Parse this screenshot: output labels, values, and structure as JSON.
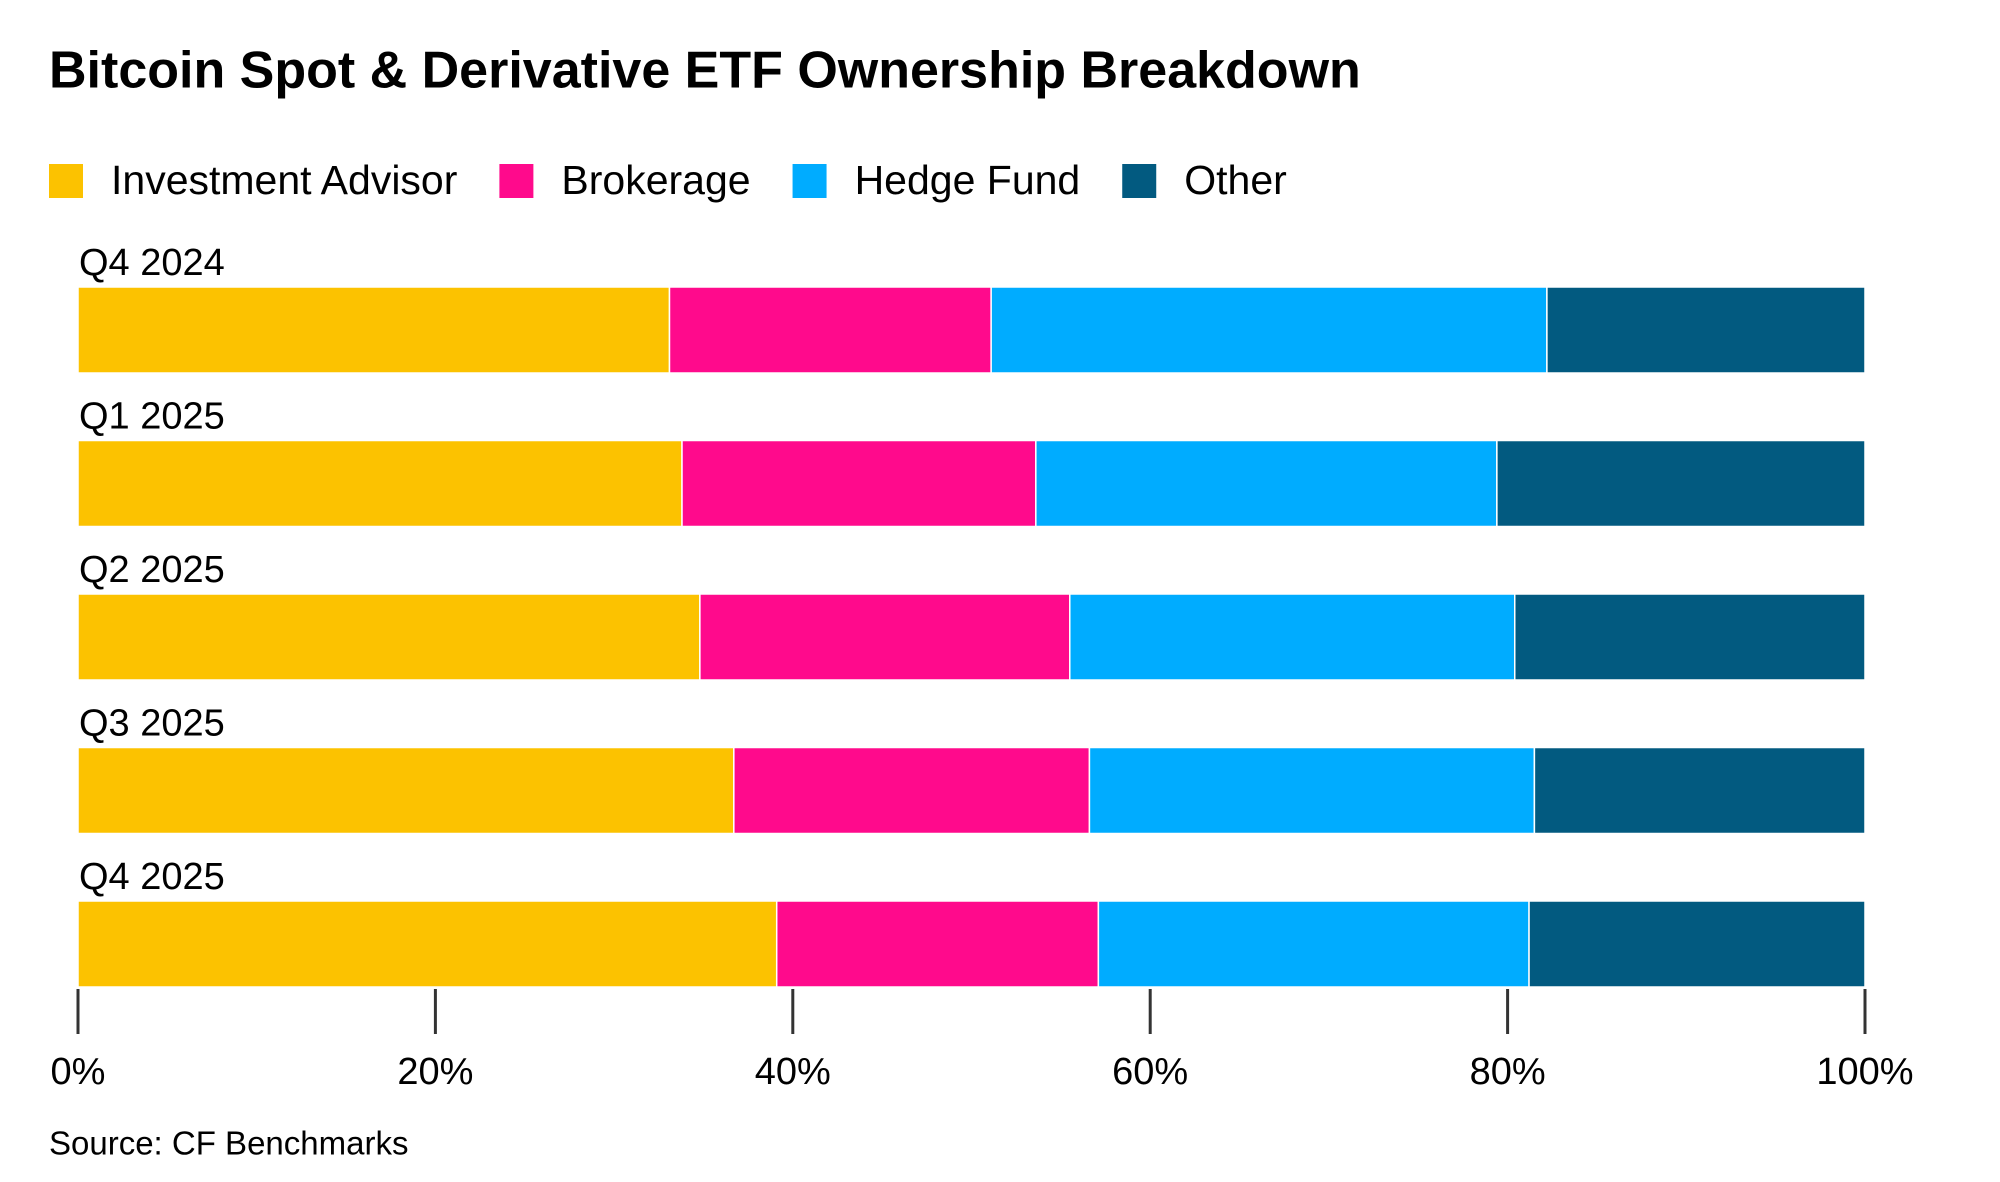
{
  "chart_data": {
    "type": "stacked-bar-horizontal",
    "title": "Bitcoin Spot & Derivative ETF Ownership Breakdown",
    "categories": [
      "Q4 2024",
      "Q1 2025",
      "Q2 2025",
      "Q3 2025",
      "Q4 2025"
    ],
    "series": [
      {
        "name": "Investment Advisor",
        "color": "#fcc200",
        "values": [
          33.1,
          33.8,
          34.8,
          36.7,
          39.1
        ]
      },
      {
        "name": "Brokerage",
        "color": "#ff0a8c",
        "values": [
          18.0,
          19.8,
          20.7,
          19.9,
          18.0
        ]
      },
      {
        "name": "Hedge Fund",
        "color": "#00acff",
        "values": [
          31.1,
          25.8,
          24.9,
          24.9,
          24.1
        ]
      },
      {
        "name": "Other",
        "color": "#025a80",
        "values": [
          17.8,
          20.6,
          19.6,
          18.5,
          18.8
        ]
      }
    ],
    "xlim": [
      0,
      100
    ],
    "xticks": [
      {
        "value": 0,
        "label": "0%"
      },
      {
        "value": 20,
        "label": "20%"
      },
      {
        "value": 40,
        "label": "40%"
      },
      {
        "value": 60,
        "label": "60%"
      },
      {
        "value": 80,
        "label": "80%"
      },
      {
        "value": 100,
        "label": "100%"
      }
    ],
    "source": "Source: CF Benchmarks"
  }
}
